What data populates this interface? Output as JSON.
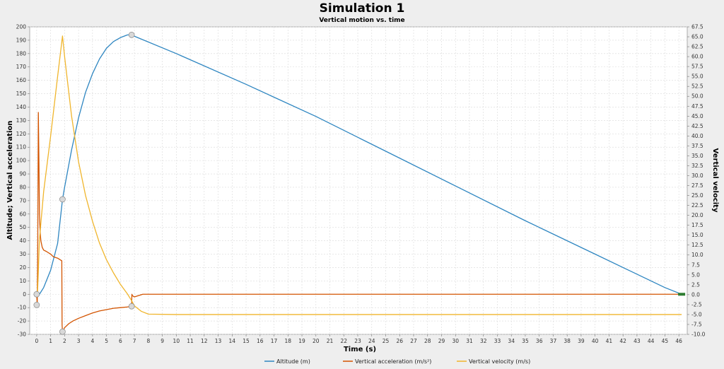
{
  "window": {
    "title": "Simulation 1",
    "subtitle": "Vertical motion vs. time"
  },
  "chart_data": {
    "type": "line",
    "title": "Simulation 1",
    "subtitle": "Vertical motion vs. time",
    "xlabel": "Time (s)",
    "ylabel_left": "Altitude; Vertical acceleration",
    "ylabel_right": "Vertical velocity",
    "xlim": [
      -0.5,
      46.6
    ],
    "ylim_left": [
      -30,
      200
    ],
    "ylim_right": [
      -10,
      67.5
    ],
    "xticks": [
      0,
      1,
      2,
      3,
      4,
      5,
      6,
      7,
      8,
      9,
      10,
      11,
      12,
      13,
      14,
      15,
      16,
      17,
      18,
      19,
      20,
      21,
      22,
      23,
      24,
      25,
      26,
      27,
      28,
      29,
      30,
      31,
      32,
      33,
      34,
      35,
      36,
      37,
      38,
      39,
      40,
      41,
      42,
      43,
      44,
      45,
      46
    ],
    "yticks_left": [
      -30,
      -20,
      -10,
      0,
      10,
      20,
      30,
      40,
      50,
      60,
      70,
      80,
      90,
      100,
      110,
      120,
      130,
      140,
      150,
      160,
      170,
      180,
      190,
      200
    ],
    "yticks_right": [
      "-10.0",
      "-7.5",
      "-5.0",
      "-2.5",
      "0.0",
      "2.5",
      "5.0",
      "7.5",
      "10.0",
      "12.5",
      "15.0",
      "17.5",
      "20.0",
      "22.5",
      "25.0",
      "27.5",
      "30.0",
      "32.5",
      "35.0",
      "37.5",
      "40.0",
      "42.5",
      "45.0",
      "47.5",
      "50.0",
      "52.5",
      "55.0",
      "57.5",
      "60.0",
      "62.5",
      "65.0",
      "67.5"
    ],
    "grid": true,
    "legend_position": "bottom",
    "series": [
      {
        "name": "Altitude (m)",
        "axis": "left",
        "color": "#2e86c1",
        "x": [
          0,
          0.1,
          0.2,
          0.5,
          1.0,
          1.5,
          1.85,
          2.0,
          2.5,
          3.0,
          3.5,
          4.0,
          4.5,
          5.0,
          5.5,
          6.0,
          6.5,
          6.8,
          7.0,
          10,
          15,
          20,
          25,
          30,
          35,
          40,
          45,
          46.2
        ],
        "y": [
          0,
          -1,
          0,
          5,
          18,
          38,
          71,
          80,
          108,
          132,
          151,
          165,
          176,
          184,
          189,
          192,
          194,
          194,
          193,
          180,
          157,
          133,
          107,
          81,
          55,
          30,
          5,
          0
        ]
      },
      {
        "name": "Vertical acceleration (m/s²)",
        "axis": "left",
        "color": "#d35400",
        "x": [
          0,
          0.04,
          0.08,
          0.12,
          0.16,
          0.2,
          0.25,
          0.3,
          0.4,
          0.5,
          0.7,
          1.0,
          1.2,
          1.5,
          1.8,
          1.82,
          1.85,
          1.9,
          2.0,
          2.3,
          2.6,
          3.0,
          3.5,
          4.0,
          4.5,
          5.0,
          5.5,
          6.0,
          6.5,
          6.8,
          6.82,
          6.85,
          7.0,
          7.3,
          7.6,
          8.0,
          9.0,
          15,
          25,
          35,
          46.2
        ],
        "y": [
          0,
          -8,
          40,
          136,
          100,
          60,
          46,
          40,
          35,
          33,
          32,
          30,
          28,
          27,
          25,
          -23,
          -28,
          -27,
          -25,
          -22,
          -20,
          -18,
          -16,
          -14,
          -12.5,
          -11.5,
          -10.5,
          -10,
          -9.5,
          -9,
          0,
          -1,
          -2,
          -1,
          0,
          0,
          0,
          0,
          0,
          0,
          0
        ]
      },
      {
        "name": "Vertical velocity (m/s)",
        "axis": "right",
        "color": "#f0b52c",
        "x": [
          0,
          0.05,
          0.1,
          0.2,
          0.5,
          1.0,
          1.5,
          1.85,
          2.0,
          2.5,
          3.0,
          3.5,
          4.0,
          4.5,
          5.0,
          5.5,
          6.0,
          6.5,
          6.8,
          7.0,
          7.5,
          8.0,
          10,
          15,
          20,
          25,
          30,
          35,
          40,
          46.2
        ],
        "y": [
          0,
          -0.5,
          4,
          14,
          26,
          40,
          55,
          65.2,
          60,
          45,
          33.5,
          25,
          18.5,
          13,
          8.8,
          5.5,
          2.6,
          0.2,
          -1.5,
          -2.8,
          -4.2,
          -4.9,
          -5,
          -5,
          -5,
          -5,
          -5,
          -5,
          -5,
          -5
        ]
      }
    ],
    "legend": [
      "Altitude (m)",
      "Vertical acceleration (m/s²)",
      "Vertical velocity (m/s)"
    ]
  }
}
